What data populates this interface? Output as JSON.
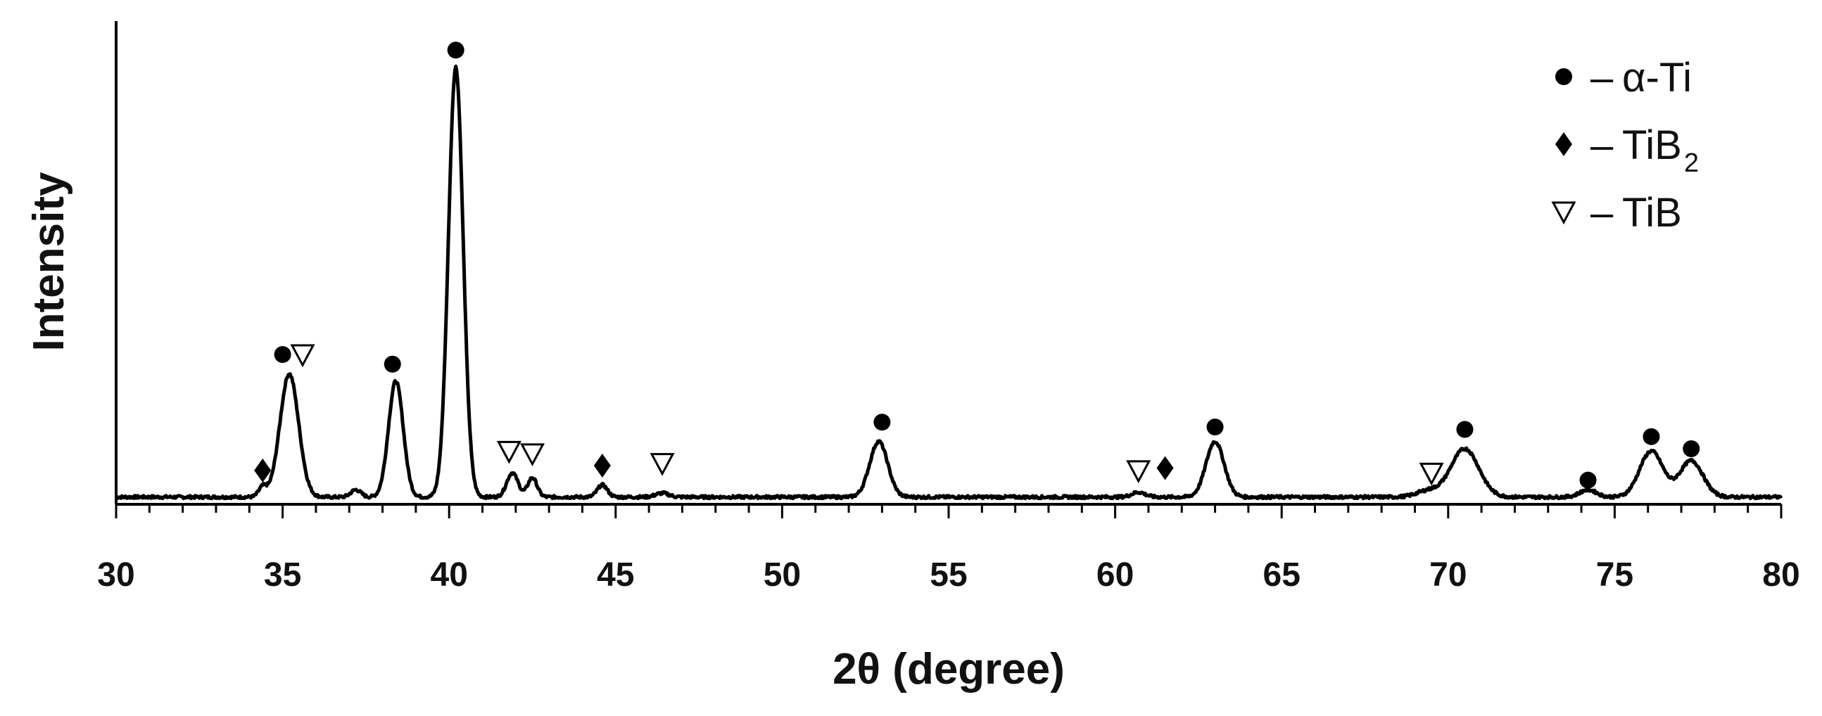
{
  "chart_data": {
    "type": "line",
    "title": "",
    "xlabel": "2θ (degree)",
    "ylabel": "Intensity",
    "xlim": [
      30,
      80
    ],
    "ylim": [
      0,
      100
    ],
    "x_ticks": [
      30,
      35,
      40,
      45,
      50,
      55,
      60,
      65,
      70,
      75,
      80
    ],
    "grid": false,
    "legend_position": "top-right",
    "legend": [
      {
        "marker": "circle",
        "symbol_color": "#000000",
        "dash": "–",
        "label": "α-Ti",
        "subscript": ""
      },
      {
        "marker": "diamond",
        "symbol_color": "#000000",
        "dash": "–",
        "label": "TiB",
        "subscript": "2"
      },
      {
        "marker": "triangle-down-open",
        "symbol_color": "#000000",
        "dash": "–",
        "label": "TiB",
        "subscript": ""
      }
    ],
    "baseline": 1.5,
    "peaks": [
      {
        "center": 34.4,
        "height": 2.0,
        "width": 0.12
      },
      {
        "center": 35.2,
        "height": 25.5,
        "width": 0.28
      },
      {
        "center": 37.2,
        "height": 1.5,
        "width": 0.15
      },
      {
        "center": 38.4,
        "height": 24.0,
        "width": 0.22
      },
      {
        "center": 40.2,
        "height": 89.0,
        "width": 0.22
      },
      {
        "center": 41.9,
        "height": 5.0,
        "width": 0.17
      },
      {
        "center": 42.5,
        "height": 4.0,
        "width": 0.14
      },
      {
        "center": 44.6,
        "height": 2.5,
        "width": 0.15
      },
      {
        "center": 46.4,
        "height": 0.8,
        "width": 0.2
      },
      {
        "center": 52.9,
        "height": 11.5,
        "width": 0.27
      },
      {
        "center": 60.7,
        "height": 1.0,
        "width": 0.2
      },
      {
        "center": 63.0,
        "height": 11.5,
        "width": 0.27
      },
      {
        "center": 69.4,
        "height": 1.3,
        "width": 0.35
      },
      {
        "center": 70.5,
        "height": 10.0,
        "width": 0.42
      },
      {
        "center": 74.2,
        "height": 1.5,
        "width": 0.25
      },
      {
        "center": 76.1,
        "height": 9.5,
        "width": 0.35
      },
      {
        "center": 77.3,
        "height": 7.5,
        "width": 0.35
      }
    ],
    "annotations": [
      {
        "phase": "α-Ti",
        "marker": "circle",
        "x": 35.0,
        "y": 31
      },
      {
        "phase": "TiB",
        "marker": "triangle-down-open",
        "x": 35.6,
        "y": 31
      },
      {
        "phase": "α-Ti",
        "marker": "circle",
        "x": 38.3,
        "y": 29
      },
      {
        "phase": "α-Ti",
        "marker": "circle",
        "x": 40.2,
        "y": 94
      },
      {
        "phase": "TiB2",
        "marker": "diamond",
        "x": 34.4,
        "y": 7
      },
      {
        "phase": "TiB",
        "marker": "triangle-down-open",
        "x": 41.8,
        "y": 11
      },
      {
        "phase": "TiB",
        "marker": "triangle-down-open",
        "x": 42.5,
        "y": 10.5
      },
      {
        "phase": "TiB2",
        "marker": "diamond",
        "x": 44.6,
        "y": 8
      },
      {
        "phase": "TiB",
        "marker": "triangle-down-open",
        "x": 46.4,
        "y": 8.5
      },
      {
        "phase": "α-Ti",
        "marker": "circle",
        "x": 53.0,
        "y": 17
      },
      {
        "phase": "TiB",
        "marker": "triangle-down-open",
        "x": 60.7,
        "y": 7
      },
      {
        "phase": "TiB2",
        "marker": "diamond",
        "x": 61.5,
        "y": 7.5
      },
      {
        "phase": "α-Ti",
        "marker": "circle",
        "x": 63.0,
        "y": 16
      },
      {
        "phase": "TiB",
        "marker": "triangle-down-open",
        "x": 69.5,
        "y": 6.5
      },
      {
        "phase": "α-Ti",
        "marker": "circle",
        "x": 70.5,
        "y": 15.5
      },
      {
        "phase": "α-Ti",
        "marker": "circle",
        "x": 74.2,
        "y": 5
      },
      {
        "phase": "α-Ti",
        "marker": "circle",
        "x": 76.1,
        "y": 14
      },
      {
        "phase": "α-Ti",
        "marker": "circle",
        "x": 77.3,
        "y": 11.5
      }
    ],
    "line_color": "#000000"
  }
}
